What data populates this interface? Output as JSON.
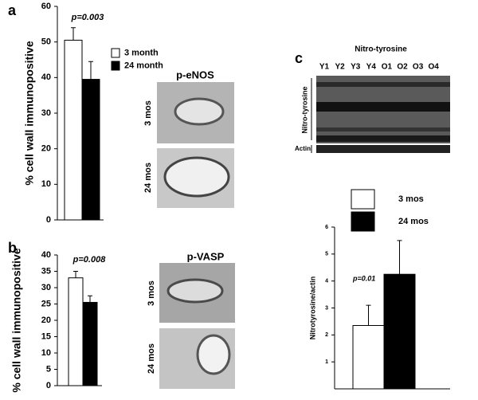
{
  "panel_labels": [
    "a",
    "b",
    "c"
  ],
  "micrographs": [
    {
      "title": "p-eNOS",
      "rows": [
        "3 mos",
        "24 mos"
      ]
    },
    {
      "title": "p-VASP",
      "rows": [
        "3 mos",
        "24 mos"
      ]
    }
  ],
  "blot": {
    "title": "Nitro-tyrosine",
    "lanes": [
      "Y1",
      "Y2",
      "Y3",
      "Y4",
      "O1",
      "O2",
      "O3",
      "O4"
    ],
    "row_labels": [
      "Nitro-tyrosine",
      "Actin"
    ]
  },
  "chart_data": [
    {
      "type": "bar",
      "annotation": "p=0.003",
      "y_label": "% cell wall immunopositive",
      "categories": [
        null
      ],
      "series": [
        {
          "name": "3 month",
          "color": "#ffffff",
          "values": [
            50.5
          ],
          "errors": [
            3.5
          ]
        },
        {
          "name": "24 month",
          "color": "#000000",
          "values": [
            39.5
          ],
          "errors": [
            5
          ]
        }
      ],
      "ylim": [
        0,
        60
      ],
      "yticks": [
        0,
        10,
        20,
        30,
        40,
        50,
        60
      ],
      "legend": "upper right"
    },
    {
      "type": "bar",
      "annotation": "p=0.008",
      "y_label": "% cell wall immunopositive",
      "categories": [
        null
      ],
      "series": [
        {
          "color": "#ffffff",
          "values": [
            33
          ],
          "errors": [
            2
          ]
        },
        {
          "color": "#000000",
          "values": [
            25.5
          ],
          "errors": [
            2
          ]
        }
      ],
      "ylim": [
        0,
        40
      ],
      "yticks": [
        0,
        5,
        10,
        15,
        20,
        25,
        30,
        35,
        40
      ]
    },
    {
      "type": "bar",
      "annotation": "p=0.01",
      "y_label": "Nitrotyrosine/actin",
      "categories": [
        null
      ],
      "series": [
        {
          "name": "3 mos",
          "color": "#ffffff",
          "values": [
            2.35
          ],
          "errors": [
            0.75
          ]
        },
        {
          "name": "24 mos",
          "color": "#000000",
          "values": [
            4.25
          ],
          "errors": [
            1.25
          ]
        }
      ],
      "ylim": [
        0,
        6
      ],
      "yticks": [
        1,
        2,
        3,
        4,
        5,
        6
      ],
      "legend": "upper left"
    }
  ]
}
